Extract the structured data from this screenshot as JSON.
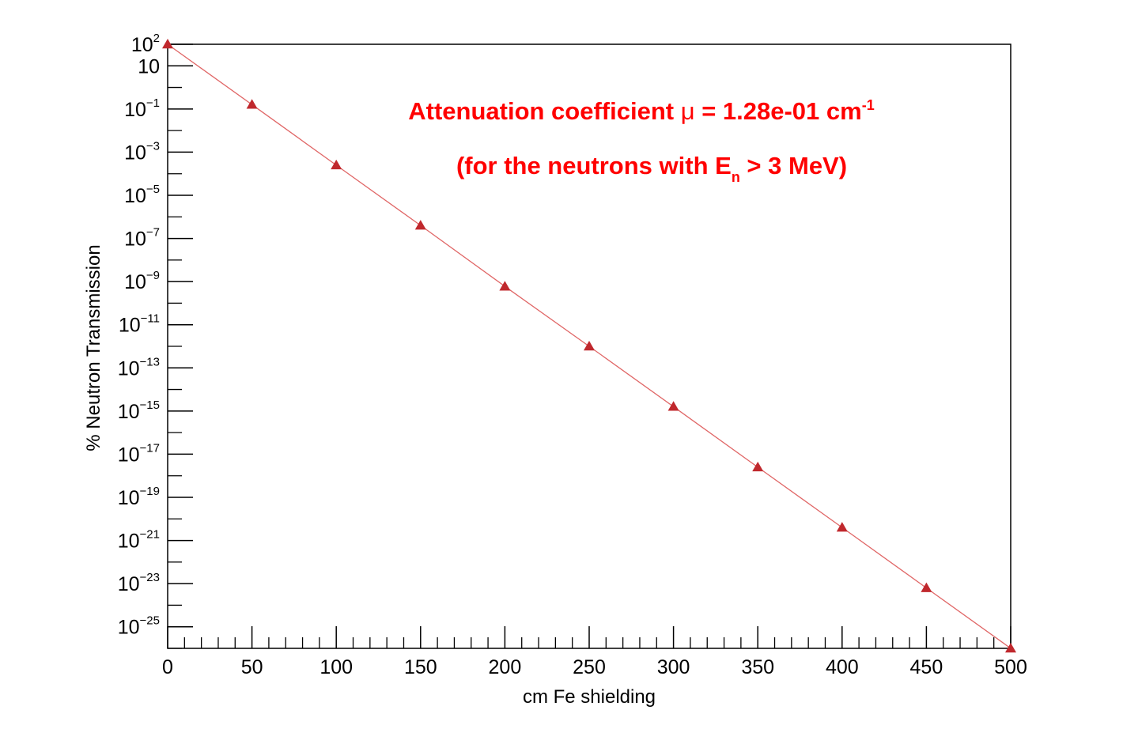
{
  "chart_data": {
    "type": "scatter",
    "title": "",
    "xlabel": "cm Fe shielding",
    "ylabel": "% Neutron Transmission",
    "xlim": [
      0,
      500
    ],
    "ylim": [
      1e-26,
      100
    ],
    "y_scale": "log",
    "x_ticks": [
      "0",
      "50",
      "100",
      "150",
      "200",
      "250",
      "300",
      "350",
      "400",
      "450",
      "500"
    ],
    "y_ticks": [
      {
        "base": "10",
        "exp": "2"
      },
      {
        "base": "10",
        "exp": ""
      },
      {
        "base": "10",
        "exp": "−1"
      },
      {
        "base": "10",
        "exp": "−3"
      },
      {
        "base": "10",
        "exp": "−5"
      },
      {
        "base": "10",
        "exp": "−7"
      },
      {
        "base": "10",
        "exp": "−9"
      },
      {
        "base": "10",
        "exp": "−11"
      },
      {
        "base": "10",
        "exp": "−13"
      },
      {
        "base": "10",
        "exp": "−15"
      },
      {
        "base": "10",
        "exp": "−17"
      },
      {
        "base": "10",
        "exp": "−19"
      },
      {
        "base": "10",
        "exp": "−21"
      },
      {
        "base": "10",
        "exp": "−23"
      },
      {
        "base": "10",
        "exp": "−25"
      }
    ],
    "grid": false,
    "series": [
      {
        "color": "#c0282d",
        "line_color": "#e06666",
        "marker": "triangle",
        "x": [
          0,
          50,
          100,
          150,
          200,
          250,
          300,
          350,
          400,
          450,
          500
        ],
        "y": [
          100,
          0.16,
          0.00025,
          4e-07,
          6e-10,
          1e-12,
          1.6e-15,
          2.5e-18,
          4e-21,
          6.3e-24,
          1e-26
        ]
      }
    ],
    "annotations": [
      {
        "prefix": "Attenuation coefficient ",
        "symbol": "μ",
        "suffix": " = 1.28e-01 cm",
        "sup": "-1",
        "color": "#ff0000"
      },
      {
        "prefix": "(for the neutrons with E",
        "sub": "n",
        "suffix": " > 3 MeV)",
        "color": "#ff0000"
      }
    ]
  }
}
